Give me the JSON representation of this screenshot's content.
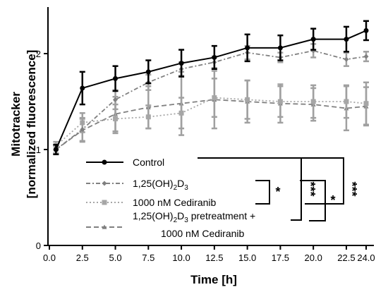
{
  "chart_data": {
    "type": "line",
    "xlabel": "Time [h]",
    "ylabel_line1": "Mitotracker",
    "ylabel_line2": "[normalized fluorescence]",
    "xlim": [
      0,
      24.5
    ],
    "ylim": [
      0,
      2.5
    ],
    "x_ticks": [
      "0.0",
      "2.5",
      "5.0",
      "7.5",
      "10.0",
      "12.5",
      "15.0",
      "17.5",
      "20.0",
      "22.5",
      "24.0"
    ],
    "x_tick_values": [
      0,
      2.5,
      5,
      7.5,
      10,
      12.5,
      15,
      17.5,
      20,
      22.5,
      24
    ],
    "y_ticks": [
      "0",
      "1",
      "2"
    ],
    "y_tick_values": [
      0,
      1,
      2
    ],
    "x": [
      0.5,
      2.5,
      5,
      7.5,
      10,
      12.5,
      15,
      17.5,
      20,
      22.5,
      24
    ],
    "series": [
      {
        "name": "Control",
        "label_main": "Control",
        "label_sub": "",
        "label_sup": "",
        "label_line2": "",
        "color": "#000000",
        "dash": "",
        "marker": "circle",
        "values": [
          1.0,
          1.64,
          1.74,
          1.81,
          1.9,
          1.96,
          2.06,
          2.06,
          2.15,
          2.15,
          2.24
        ],
        "errors": [
          0.05,
          0.17,
          0.13,
          0.12,
          0.14,
          0.12,
          0.14,
          0.13,
          0.11,
          0.13,
          0.1
        ]
      },
      {
        "name": "1,25(OH)2D3",
        "label_main": "1,25(OH)",
        "label_sub": "2",
        "label_sup": "D",
        "label_sub2": "3",
        "label_line2": "",
        "color": "#808080",
        "dash": "6,3,2,3",
        "marker": "diamond",
        "values": [
          1.0,
          1.21,
          1.52,
          1.7,
          1.84,
          1.91,
          2.01,
          1.96,
          2.03,
          1.94,
          1.97
        ],
        "errors": [
          0.04,
          0.12,
          0.1,
          0.08,
          0.07,
          0.06,
          0.07,
          0.05,
          0.07,
          0.07,
          0.05
        ]
      },
      {
        "name": "1000 nM Cediranib",
        "label_main": "1000 nM Cediranib",
        "label_sub": "",
        "label_sup": "",
        "label_line2": "",
        "color": "#a6a6a6",
        "dash": "2,3",
        "marker": "square",
        "values": [
          1.04,
          1.28,
          1.32,
          1.34,
          1.38,
          1.54,
          1.52,
          1.5,
          1.5,
          1.5,
          1.48
        ],
        "errors": [
          0.04,
          0.1,
          0.15,
          0.12,
          0.16,
          0.2,
          0.2,
          0.16,
          0.17,
          0.17,
          0.22
        ]
      },
      {
        "name": "1,25(OH)2D3 pretreatment + 1000 nM Cediranib",
        "label_main": "1,25(OH)",
        "label_sub": "2",
        "label_sup": "D",
        "label_sub2": "3",
        "label_tail": " pretreatment +",
        "label_line2": "1000 nM Cediranib",
        "color": "#808080",
        "dash": "7,4",
        "marker": "triangle",
        "values": [
          1.0,
          1.2,
          1.37,
          1.44,
          1.48,
          1.52,
          1.5,
          1.48,
          1.47,
          1.43,
          1.45
        ],
        "errors": [
          0.04,
          0.12,
          0.18,
          0.22,
          0.33,
          0.3,
          0.22,
          0.2,
          0.17,
          0.23,
          0.2
        ]
      }
    ],
    "significance": [
      "*",
      "***",
      "*",
      "***"
    ],
    "legend_position": "lower-right",
    "grid": false
  }
}
